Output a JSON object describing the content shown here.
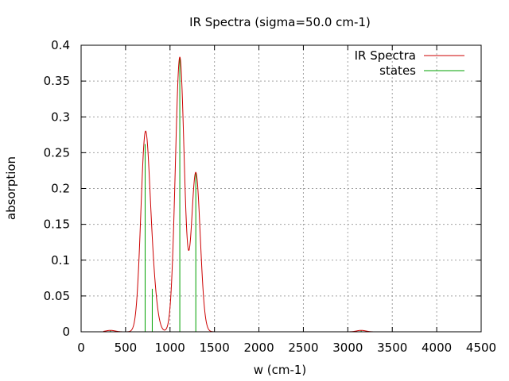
{
  "chart_data": {
    "type": "line",
    "title": "IR Spectra (sigma=50.0 cm-1)",
    "xlabel": "w (cm-1)",
    "ylabel": "absorption",
    "xlim": [
      0,
      4500
    ],
    "ylim": [
      0,
      0.4
    ],
    "xticks": [
      0,
      500,
      1000,
      1500,
      2000,
      2500,
      3000,
      3500,
      4000,
      4500
    ],
    "xtick_labels": [
      "0",
      "500",
      "1000",
      "1500",
      "2000",
      "2500",
      "3000",
      "3500",
      "4000",
      "4500"
    ],
    "yticks": [
      0,
      0.05,
      0.1,
      0.15,
      0.2,
      0.25,
      0.3,
      0.35,
      0.4
    ],
    "ytick_labels": [
      "0",
      "0.05",
      "0.1",
      "0.15",
      "0.2",
      "0.25",
      "0.3",
      "0.35",
      "0.4"
    ],
    "grid": true,
    "legend_position": "top-right",
    "sigma": 50,
    "series": [
      {
        "name": "IR Spectra",
        "kind": "gaussian-sum",
        "color": "#cc0000",
        "x_range": [
          250,
          4250
        ]
      },
      {
        "name": "states",
        "kind": "sticks",
        "color": "#00a000",
        "points": [
          {
            "x": 330,
            "y": 0.002
          },
          {
            "x": 720,
            "y": 0.262
          },
          {
            "x": 800,
            "y": 0.06
          },
          {
            "x": 1110,
            "y": 0.383
          },
          {
            "x": 1290,
            "y": 0.222
          },
          {
            "x": 3150,
            "y": 0.002
          }
        ]
      }
    ]
  }
}
